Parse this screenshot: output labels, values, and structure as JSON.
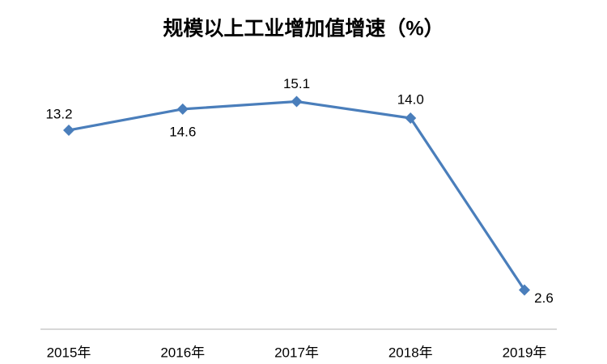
{
  "chart_data": {
    "type": "line",
    "title": "规模以上工业增加值增速（%）",
    "categories": [
      "2015年",
      "2016年",
      "2017年",
      "2018年",
      "2019年"
    ],
    "values": [
      13.2,
      14.6,
      15.1,
      14.0,
      2.6
    ],
    "value_labels": [
      "13.2",
      "14.6",
      "15.1",
      "14.0",
      "2.6"
    ],
    "color": "#4a7ebb"
  }
}
